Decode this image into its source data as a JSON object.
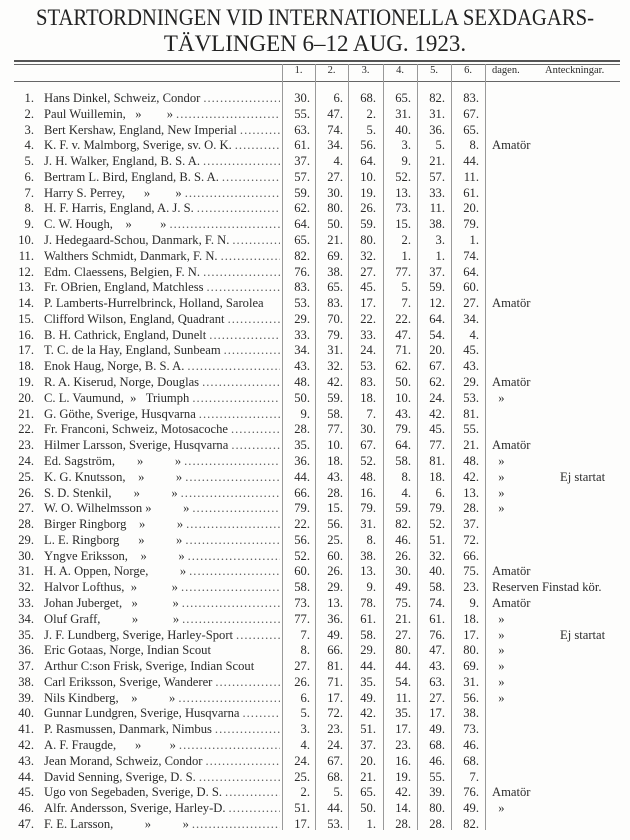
{
  "title": {
    "line1": "STARTORDNINGEN VID INTERNATIONELLA SEXDAGARS-",
    "line2": "TÄVLINGEN 6–12 AUG. 1923."
  },
  "headers": [
    "1.",
    "2.",
    "3.",
    "4.",
    "5.",
    "6.",
    "dagen.",
    "Anteckningar."
  ],
  "rows": [
    [
      "1.",
      "Hans Dinkel, Schweiz, Condor",
      "30.",
      "6.",
      "68.",
      "65.",
      "82.",
      "83.",
      "",
      ""
    ],
    [
      "2.",
      "Paul Wuillemin,   »        »",
      "55.",
      "47.",
      "2.",
      "31.",
      "31.",
      "67.",
      "",
      ""
    ],
    [
      "3.",
      "Bert Kershaw, England, New Imperial",
      "63.",
      "74.",
      "5.",
      "40.",
      "36.",
      "65.",
      "",
      ""
    ],
    [
      "4.",
      "K. F. v. Malmborg, Sverige, sv. O. K.",
      "61.",
      "34.",
      "56.",
      "3.",
      "5.",
      "8.",
      "Amatör",
      ""
    ],
    [
      "5.",
      "J. H. Walker, England, B. S. A.",
      "37.",
      "4.",
      "64.",
      "9.",
      "21.",
      "44.",
      "",
      ""
    ],
    [
      "6.",
      "Bertram L. Bird, England, B. S. A.",
      "57.",
      "27.",
      "10.",
      "52.",
      "57.",
      "11.",
      "",
      ""
    ],
    [
      "7.",
      "Harry S. Perrey,      »        »",
      "59.",
      "30.",
      "19.",
      "13.",
      "33.",
      "61.",
      "",
      ""
    ],
    [
      "8.",
      "H. F. Harris, England, A. J. S.",
      "62.",
      "80.",
      "26.",
      "73.",
      "11.",
      "20.",
      "",
      ""
    ],
    [
      "9.",
      "C. W. Hough,    »         »",
      "64.",
      "50.",
      "59.",
      "15.",
      "38.",
      "79.",
      "",
      ""
    ],
    [
      "10.",
      "J. Hedegaard-Schou, Danmark, F. N.",
      "65.",
      "21.",
      "80.",
      "2.",
      "3.",
      "1.",
      "",
      ""
    ],
    [
      "11.",
      "Walthers Schmidt, Danmark, F. N.",
      "82.",
      "69.",
      "32.",
      "1.",
      "1.",
      "74.",
      "",
      ""
    ],
    [
      "12.",
      "Edm. Claessens, Belgien, F. N.",
      "76.",
      "38.",
      "27.",
      "77.",
      "37.",
      "64.",
      "",
      ""
    ],
    [
      "13.",
      "Fr. OBrien, England, Matchless",
      "83.",
      "65.",
      "45.",
      "5.",
      "59.",
      "60.",
      "",
      ""
    ],
    [
      "14.",
      "P. Lamberts-Hurrelbrinck, Holland, Sarolea",
      "53.",
      "83.",
      "17.",
      "7.",
      "12.",
      "27.",
      "Amatör",
      ""
    ],
    [
      "15.",
      "Clifford Wilson, England, Quadrant",
      "29.",
      "70.",
      "22.",
      "22.",
      "64.",
      "34.",
      "",
      ""
    ],
    [
      "16.",
      "B. H. Cathrick, England, Dunelt",
      "33.",
      "79.",
      "33.",
      "47.",
      "54.",
      "4.",
      "",
      ""
    ],
    [
      "17.",
      "T. C. de la Hay, England, Sunbeam",
      "34.",
      "31.",
      "24.",
      "71.",
      "20.",
      "45.",
      "",
      ""
    ],
    [
      "18.",
      "Enok Haug, Norge, B. S. A.",
      "43.",
      "32.",
      "53.",
      "62.",
      "67.",
      "43.",
      "",
      ""
    ],
    [
      "19.",
      "R. A. Kiserud, Norge, Douglas",
      "48.",
      "42.",
      "83.",
      "50.",
      "62.",
      "29.",
      "Amatör",
      ""
    ],
    [
      "20.",
      "C. L. Vaumund,  »   Triumph",
      "50.",
      "59.",
      "18.",
      "10.",
      "24.",
      "53.",
      "  »",
      ""
    ],
    [
      "21.",
      "G. Göthe, Sverige, Husqvarna",
      "9.",
      "58.",
      "7.",
      "43.",
      "42.",
      "81.",
      "",
      ""
    ],
    [
      "22.",
      "Fr. Franconi, Schweiz, Motosacoche",
      "28.",
      "77.",
      "30.",
      "79.",
      "45.",
      "55.",
      "",
      ""
    ],
    [
      "23.",
      "Hilmer Larsson, Sverige, Husqvarna",
      "35.",
      "10.",
      "67.",
      "64.",
      "77.",
      "21.",
      "Amatör",
      ""
    ],
    [
      "24.",
      "Ed. Sagström,       »          »",
      "36.",
      "18.",
      "52.",
      "58.",
      "81.",
      "48.",
      "  »",
      ""
    ],
    [
      "25.",
      "K. G. Knutsson,    »          »",
      "44.",
      "43.",
      "48.",
      "8.",
      "18.",
      "42.",
      "  »",
      "Ej startat"
    ],
    [
      "26.",
      "S. D. Stenkil,       »          »",
      "66.",
      "28.",
      "16.",
      "4.",
      "6.",
      "13.",
      "  »",
      ""
    ],
    [
      "27.",
      "W. O. Wilhelmsson »          »",
      "79.",
      "15.",
      "79.",
      "59.",
      "79.",
      "28.",
      "  »",
      ""
    ],
    [
      "28.",
      "Birger Ringborg    »          »",
      "22.",
      "56.",
      "31.",
      "82.",
      "52.",
      "37.",
      "",
      ""
    ],
    [
      "29.",
      "L. E. Ringborg      »          »",
      "56.",
      "25.",
      "8.",
      "46.",
      "51.",
      "72.",
      "",
      ""
    ],
    [
      "30.",
      "Yngve Eriksson,    »          »",
      "52.",
      "60.",
      "38.",
      "26.",
      "32.",
      "66.",
      "",
      ""
    ],
    [
      "31.",
      "H. A. Oppen, Norge,          »",
      "60.",
      "26.",
      "13.",
      "30.",
      "40.",
      "75.",
      "Amatör",
      ""
    ],
    [
      "32.",
      "Halvor Lofthus,  »           »",
      "58.",
      "29.",
      "9.",
      "49.",
      "58.",
      "23.",
      "Reserven Finstad kör.",
      ""
    ],
    [
      "33.",
      "Johan Juberget,   »           »",
      "73.",
      "13.",
      "78.",
      "75.",
      "74.",
      "9.",
      "Amatör",
      ""
    ],
    [
      "34.",
      "Oluf Graff,          »           »",
      "77.",
      "36.",
      "61.",
      "21.",
      "61.",
      "18.",
      "  »",
      ""
    ],
    [
      "35.",
      "J. F. Lundberg, Sverige, Harley-Sport",
      "7.",
      "49.",
      "58.",
      "27.",
      "76.",
      "17.",
      "  »",
      "Ej startat"
    ],
    [
      "36.",
      "Eric Gotaas, Norge, Indian Scout",
      "8.",
      "66.",
      "29.",
      "80.",
      "47.",
      "80.",
      "  »",
      ""
    ],
    [
      "37.",
      "Arthur C:son Frisk, Sverige, Indian Scout",
      "27.",
      "81.",
      "44.",
      "44.",
      "43.",
      "69.",
      "  »",
      ""
    ],
    [
      "38.",
      "Carl Eriksson, Sverige, Wanderer",
      "26.",
      "71.",
      "35.",
      "54.",
      "63.",
      "31.",
      "  »",
      ""
    ],
    [
      "39.",
      "Nils Kindberg,    »          »",
      "6.",
      "17.",
      "49.",
      "11.",
      "27.",
      "56.",
      "  »",
      ""
    ],
    [
      "40.",
      "Gunnar Lundgren, Sverige, Husqvarna",
      "5.",
      "72.",
      "42.",
      "35.",
      "17.",
      "38.",
      "",
      ""
    ],
    [
      "41.",
      "P. Rasmussen, Danmark, Nimbus",
      "3.",
      "23.",
      "51.",
      "17.",
      "49.",
      "73.",
      "",
      ""
    ],
    [
      "42.",
      "A. F. Fraugde,      »         »",
      "4.",
      "24.",
      "37.",
      "23.",
      "68.",
      "46.",
      "",
      ""
    ],
    [
      "43.",
      "Jean Morand, Schweiz, Condor",
      "24.",
      "67.",
      "20.",
      "16.",
      "46.",
      "68.",
      "",
      ""
    ],
    [
      "44.",
      "David Senning, Sverige, D. S.",
      "25.",
      "68.",
      "21.",
      "19.",
      "55.",
      "7.",
      "",
      ""
    ],
    [
      "45.",
      "Ugo von Segebaden, Sverige, D. S.",
      "2.",
      "5.",
      "65.",
      "42.",
      "39.",
      "76.",
      "Amatör",
      ""
    ],
    [
      "46.",
      "Alfr. Andersson, Sverige, Harley-D.",
      "51.",
      "44.",
      "50.",
      "14.",
      "80.",
      "49.",
      "  »",
      ""
    ],
    [
      "47.",
      "F. E. Larsson,          »          »",
      "17.",
      "53.",
      "1.",
      "28.",
      "28.",
      "82.",
      "",
      ""
    ]
  ]
}
